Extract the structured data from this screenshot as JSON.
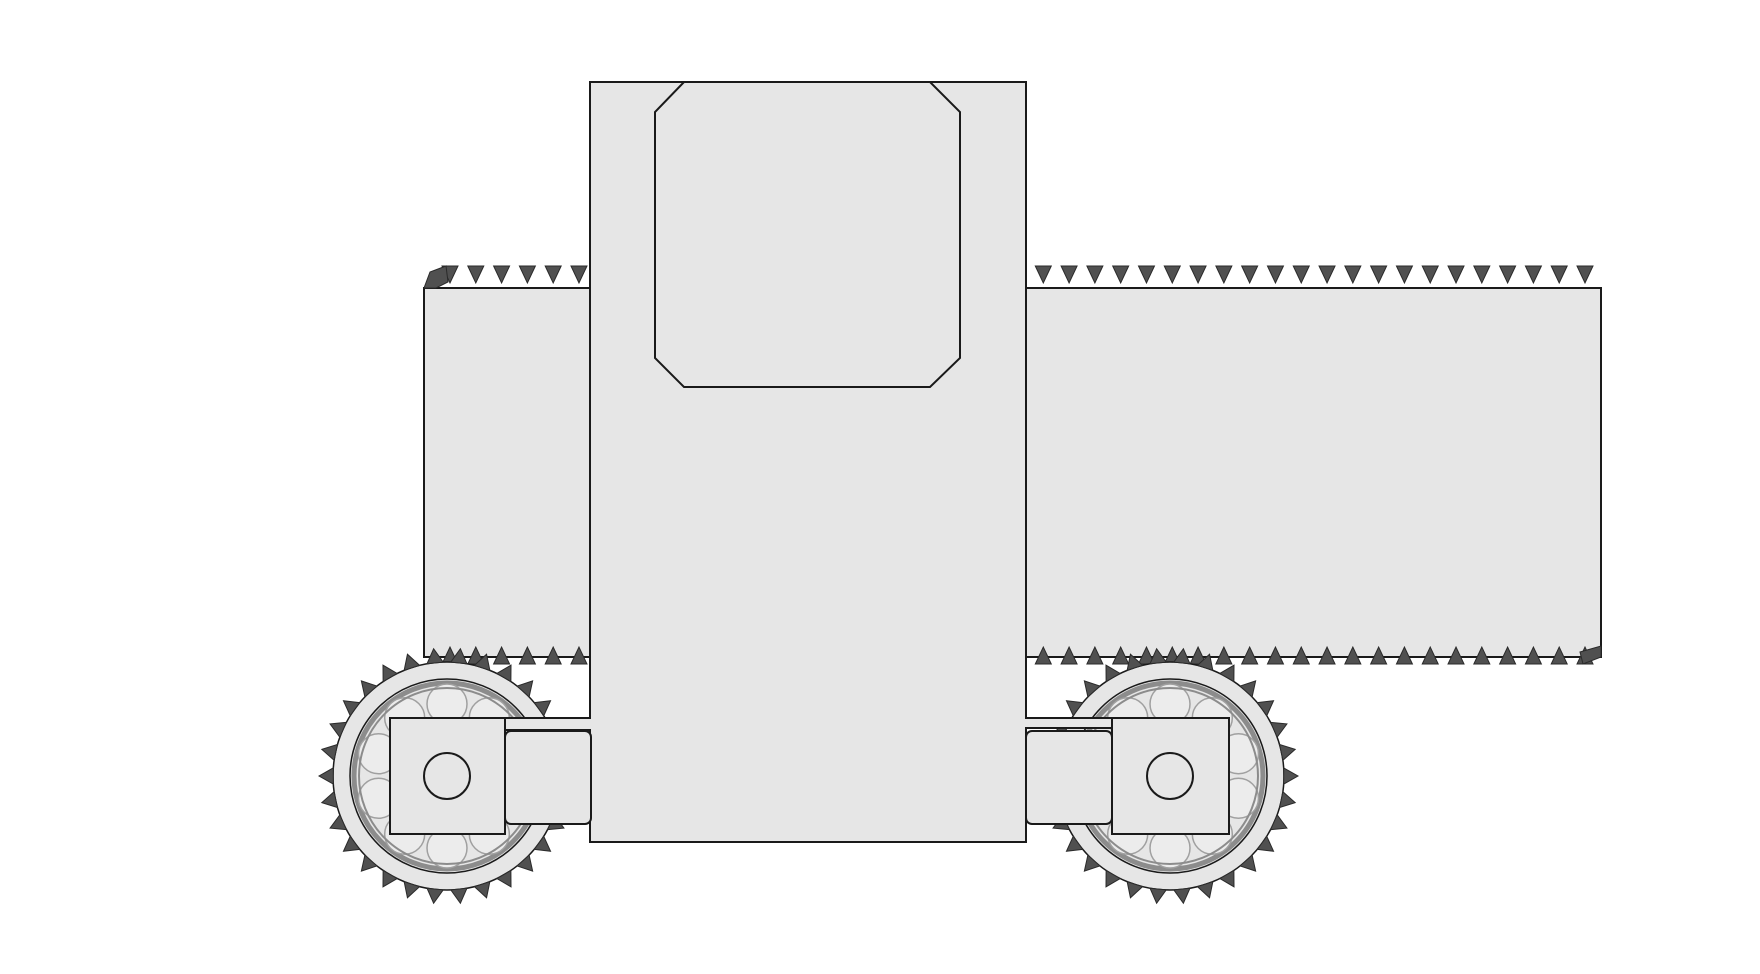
{
  "diagram": {
    "title": "",
    "components": [
      "rack-bar",
      "carriage-body",
      "window-plate",
      "left-pinion-gear",
      "right-pinion-gear",
      "left-bearing",
      "right-bearing",
      "left-axle-block",
      "right-axle-block",
      "left-guide-bracket",
      "right-guide-bracket"
    ],
    "gears": {
      "tooth_count": 30,
      "bearing_ball_count": 10
    },
    "rack": {
      "tooth_count_top": 45,
      "tooth_count_bottom": 45
    }
  },
  "colors": {
    "background": "#ffffff",
    "body_fill": "#e6e6e6",
    "outline": "#1a1a1a",
    "tooth_fill": "#505050",
    "tooth_stroke": "#2a2a2a",
    "bearing_ring": "#8c8c8c",
    "bearing_ball": "#ececec",
    "bearing_ball_stroke": "#a0a0a0"
  }
}
